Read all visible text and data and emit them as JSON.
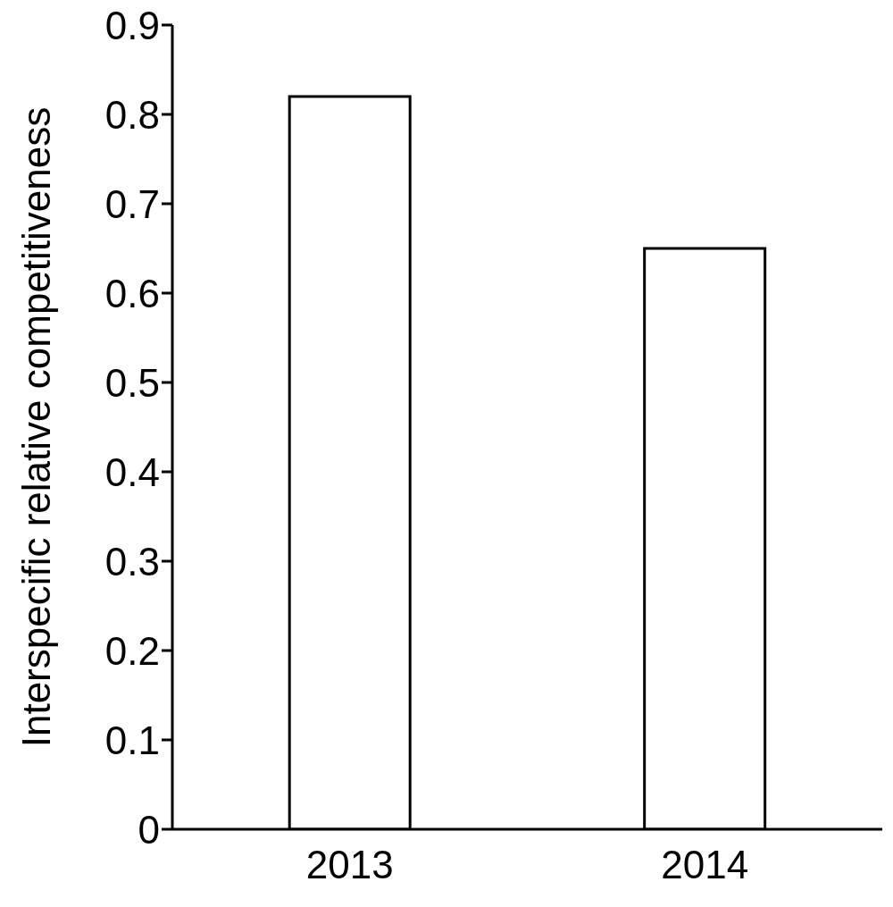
{
  "chart_data": {
    "type": "bar",
    "ylabel": "Interspecific relative competitiveness",
    "categories": [
      "2013",
      "2014"
    ],
    "values": [
      0.82,
      0.65
    ],
    "color": "#ffffff",
    "ylim": [
      0,
      0.9
    ],
    "yticks": [
      0,
      0.1,
      0.2,
      0.3,
      0.4,
      0.5,
      0.6,
      0.7,
      0.8,
      0.9
    ],
    "grid": false
  }
}
